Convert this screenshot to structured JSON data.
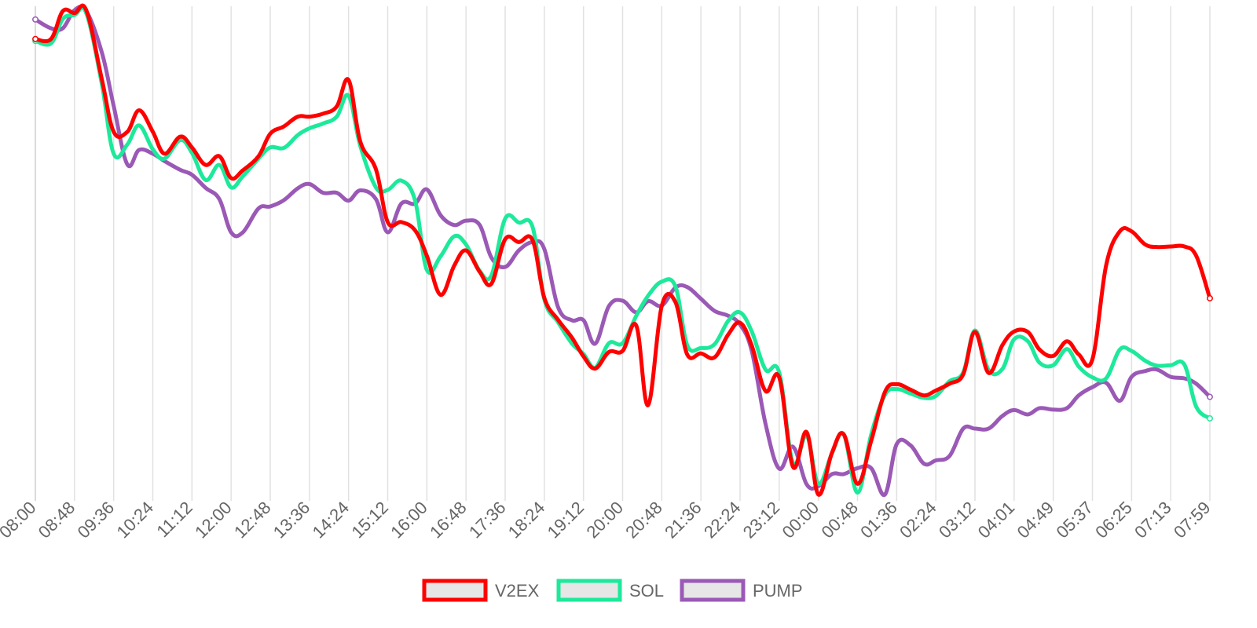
{
  "chart_data": {
    "type": "line",
    "title": "",
    "xlabel": "",
    "ylabel": "",
    "grid": "vertical",
    "legend_position": "bottom",
    "x_ticks": [
      "08:00",
      "08:48",
      "09:36",
      "10:24",
      "11:12",
      "12:00",
      "12:48",
      "13:36",
      "14:24",
      "15:12",
      "16:00",
      "16:48",
      "17:36",
      "18:24",
      "19:12",
      "20:00",
      "20:48",
      "21:36",
      "22:24",
      "23:12",
      "00:00",
      "00:48",
      "01:36",
      "02:24",
      "03:12",
      "04:01",
      "04:49",
      "05:37",
      "06:25",
      "07:13",
      "07:59"
    ],
    "y_axis": {
      "min": 0,
      "max": 100,
      "shown": false
    },
    "x_domain": [
      0,
      30
    ],
    "series": [
      {
        "name": "V2EX",
        "color": "#ff0000",
        "points": [
          [
            0.0,
            93.3
          ],
          [
            0.4,
            93.3
          ],
          [
            0.7,
            99.0
          ],
          [
            1.0,
            98.6
          ],
          [
            1.3,
            99.2
          ],
          [
            1.7,
            85.0
          ],
          [
            2.0,
            74.3
          ],
          [
            2.35,
            74.3
          ],
          [
            2.65,
            78.7
          ],
          [
            3.0,
            74.3
          ],
          [
            3.3,
            69.8
          ],
          [
            3.7,
            73.3
          ],
          [
            4.0,
            71.1
          ],
          [
            4.35,
            67.5
          ],
          [
            4.7,
            69.3
          ],
          [
            5.0,
            64.8
          ],
          [
            5.3,
            66.4
          ],
          [
            5.7,
            69.3
          ],
          [
            6.0,
            73.9
          ],
          [
            6.35,
            75.4
          ],
          [
            6.7,
            77.4
          ],
          [
            7.0,
            77.4
          ],
          [
            7.35,
            78.0
          ],
          [
            7.7,
            79.5
          ],
          [
            8.0,
            84.9
          ],
          [
            8.3,
            72.3
          ],
          [
            8.7,
            66.6
          ],
          [
            9.0,
            55.8
          ],
          [
            9.35,
            55.8
          ],
          [
            9.7,
            54.1
          ],
          [
            10.0,
            48.9
          ],
          [
            10.35,
            40.9
          ],
          [
            10.7,
            46.9
          ],
          [
            11.0,
            50.0
          ],
          [
            11.35,
            45.6
          ],
          [
            11.65,
            43.2
          ],
          [
            12.0,
            52.3
          ],
          [
            12.35,
            51.7
          ],
          [
            12.7,
            52.1
          ],
          [
            13.0,
            40.3
          ],
          [
            13.35,
            35.8
          ],
          [
            13.7,
            32.2
          ],
          [
            14.0,
            28.3
          ],
          [
            14.3,
            25.8
          ],
          [
            14.65,
            29.2
          ],
          [
            15.0,
            29.4
          ],
          [
            15.35,
            34.6
          ],
          [
            15.65,
            18.3
          ],
          [
            16.0,
            38.6
          ],
          [
            16.35,
            39.4
          ],
          [
            16.65,
            28.7
          ],
          [
            17.0,
            28.9
          ],
          [
            17.35,
            28.1
          ],
          [
            17.7,
            32.8
          ],
          [
            18.0,
            35.2
          ],
          [
            18.3,
            30.5
          ],
          [
            18.65,
            21.2
          ],
          [
            19.0,
            24.0
          ],
          [
            19.35,
            5.7
          ],
          [
            19.7,
            12.8
          ],
          [
            20.0,
            0.0
          ],
          [
            20.35,
            8.6
          ],
          [
            20.65,
            12.3
          ],
          [
            21.0,
            2.2
          ],
          [
            21.35,
            11.0
          ],
          [
            21.7,
            21.0
          ],
          [
            22.0,
            22.6
          ],
          [
            22.35,
            21.5
          ],
          [
            22.7,
            20.3
          ],
          [
            23.0,
            21.3
          ],
          [
            23.35,
            22.7
          ],
          [
            23.7,
            24.6
          ],
          [
            24.0,
            33.3
          ],
          [
            24.35,
            24.9
          ],
          [
            24.7,
            30.6
          ],
          [
            25.0,
            33.4
          ],
          [
            25.35,
            33.3
          ],
          [
            25.65,
            29.7
          ],
          [
            26.0,
            28.4
          ],
          [
            26.35,
            31.4
          ],
          [
            26.65,
            28.7
          ],
          [
            27.0,
            27.7
          ],
          [
            27.35,
            46.9
          ],
          [
            27.7,
            53.9
          ],
          [
            28.0,
            53.9
          ],
          [
            28.35,
            51.2
          ],
          [
            28.65,
            50.7
          ],
          [
            29.0,
            50.8
          ],
          [
            29.35,
            50.8
          ],
          [
            29.65,
            48.9
          ],
          [
            30.0,
            40.2
          ]
        ]
      },
      {
        "name": "SOL",
        "color": "#1de99b",
        "points": [
          [
            0.0,
            92.9
          ],
          [
            0.4,
            92.4
          ],
          [
            0.7,
            97.4
          ],
          [
            1.0,
            98.2
          ],
          [
            1.3,
            98.6
          ],
          [
            1.7,
            84.0
          ],
          [
            2.0,
            69.8
          ],
          [
            2.35,
            71.7
          ],
          [
            2.65,
            75.6
          ],
          [
            3.0,
            70.7
          ],
          [
            3.3,
            68.8
          ],
          [
            3.7,
            72.6
          ],
          [
            4.0,
            70.0
          ],
          [
            4.35,
            64.4
          ],
          [
            4.7,
            67.5
          ],
          [
            5.0,
            62.9
          ],
          [
            5.3,
            65.2
          ],
          [
            5.7,
            68.8
          ],
          [
            6.0,
            71.1
          ],
          [
            6.35,
            71.0
          ],
          [
            6.7,
            73.6
          ],
          [
            7.0,
            75.0
          ],
          [
            7.35,
            76.0
          ],
          [
            7.7,
            77.4
          ],
          [
            8.0,
            81.7
          ],
          [
            8.3,
            71.4
          ],
          [
            8.7,
            62.9
          ],
          [
            9.0,
            62.4
          ],
          [
            9.35,
            64.3
          ],
          [
            9.7,
            60.2
          ],
          [
            10.0,
            46.0
          ],
          [
            10.35,
            48.8
          ],
          [
            10.7,
            52.9
          ],
          [
            11.0,
            51.2
          ],
          [
            11.35,
            45.8
          ],
          [
            11.65,
            44.9
          ],
          [
            12.0,
            56.5
          ],
          [
            12.35,
            55.7
          ],
          [
            12.7,
            54.8
          ],
          [
            13.0,
            40.0
          ],
          [
            13.35,
            35.3
          ],
          [
            13.7,
            31.0
          ],
          [
            14.0,
            28.8
          ],
          [
            14.3,
            26.0
          ],
          [
            14.65,
            31.0
          ],
          [
            15.0,
            31.0
          ],
          [
            15.35,
            36.6
          ],
          [
            15.65,
            40.7
          ],
          [
            16.0,
            43.6
          ],
          [
            16.35,
            42.6
          ],
          [
            16.65,
            30.6
          ],
          [
            17.0,
            30.0
          ],
          [
            17.35,
            30.8
          ],
          [
            17.7,
            35.6
          ],
          [
            18.0,
            37.3
          ],
          [
            18.3,
            33.4
          ],
          [
            18.65,
            25.6
          ],
          [
            19.0,
            25.0
          ],
          [
            19.35,
            6.5
          ],
          [
            19.7,
            12.1
          ],
          [
            20.0,
            2.2
          ],
          [
            20.35,
            8.5
          ],
          [
            20.65,
            12.3
          ],
          [
            21.0,
            0.4
          ],
          [
            21.35,
            12.3
          ],
          [
            21.7,
            20.4
          ],
          [
            22.0,
            21.6
          ],
          [
            22.35,
            20.7
          ],
          [
            22.7,
            19.8
          ],
          [
            23.0,
            20.2
          ],
          [
            23.35,
            23.2
          ],
          [
            23.7,
            25.0
          ],
          [
            24.0,
            33.6
          ],
          [
            24.35,
            25.5
          ],
          [
            24.7,
            25.7
          ],
          [
            25.0,
            31.8
          ],
          [
            25.35,
            31.4
          ],
          [
            25.65,
            27.0
          ],
          [
            26.0,
            26.5
          ],
          [
            26.35,
            29.8
          ],
          [
            26.65,
            26.2
          ],
          [
            27.0,
            24.0
          ],
          [
            27.35,
            23.8
          ],
          [
            27.7,
            29.7
          ],
          [
            28.0,
            29.4
          ],
          [
            28.35,
            27.4
          ],
          [
            28.65,
            26.4
          ],
          [
            29.0,
            26.5
          ],
          [
            29.35,
            26.6
          ],
          [
            29.65,
            18.0
          ],
          [
            30.0,
            15.6
          ]
        ]
      },
      {
        "name": "PUMP",
        "color": "#9b59b6",
        "points": [
          [
            0.0,
            97.3
          ],
          [
            0.4,
            95.5
          ],
          [
            0.7,
            95.5
          ],
          [
            1.0,
            99.2
          ],
          [
            1.3,
            99.0
          ],
          [
            1.7,
            90.5
          ],
          [
            2.0,
            79.6
          ],
          [
            2.35,
            67.6
          ],
          [
            2.65,
            70.6
          ],
          [
            3.0,
            69.8
          ],
          [
            3.3,
            68.3
          ],
          [
            3.7,
            66.5
          ],
          [
            4.0,
            65.5
          ],
          [
            4.35,
            62.8
          ],
          [
            4.7,
            60.5
          ],
          [
            5.0,
            53.7
          ],
          [
            5.3,
            53.7
          ],
          [
            5.7,
            58.6
          ],
          [
            6.0,
            59.0
          ],
          [
            6.35,
            60.3
          ],
          [
            6.7,
            62.7
          ],
          [
            7.0,
            63.6
          ],
          [
            7.35,
            61.8
          ],
          [
            7.7,
            61.8
          ],
          [
            8.0,
            60.2
          ],
          [
            8.3,
            62.3
          ],
          [
            8.7,
            60.5
          ],
          [
            9.0,
            53.7
          ],
          [
            9.35,
            59.6
          ],
          [
            9.7,
            59.6
          ],
          [
            10.0,
            62.5
          ],
          [
            10.35,
            57.2
          ],
          [
            10.7,
            55.2
          ],
          [
            11.0,
            56.1
          ],
          [
            11.35,
            55.2
          ],
          [
            11.65,
            48.5
          ],
          [
            12.0,
            46.6
          ],
          [
            12.35,
            50.0
          ],
          [
            12.7,
            51.7
          ],
          [
            13.0,
            50.3
          ],
          [
            13.35,
            38.4
          ],
          [
            13.7,
            35.7
          ],
          [
            14.0,
            35.7
          ],
          [
            14.3,
            30.9
          ],
          [
            14.65,
            38.6
          ],
          [
            15.0,
            39.7
          ],
          [
            15.35,
            37.3
          ],
          [
            15.65,
            39.6
          ],
          [
            16.0,
            38.7
          ],
          [
            16.35,
            42.4
          ],
          [
            16.65,
            42.5
          ],
          [
            17.0,
            40.1
          ],
          [
            17.35,
            37.6
          ],
          [
            17.7,
            36.6
          ],
          [
            18.0,
            34.8
          ],
          [
            18.3,
            29.4
          ],
          [
            18.65,
            14.5
          ],
          [
            19.0,
            5.3
          ],
          [
            19.35,
            9.8
          ],
          [
            19.7,
            2.1
          ],
          [
            20.0,
            1.7
          ],
          [
            20.35,
            4.2
          ],
          [
            20.65,
            4.2
          ],
          [
            21.0,
            5.4
          ],
          [
            21.35,
            5.4
          ],
          [
            21.7,
            0.0
          ],
          [
            22.0,
            10.3
          ],
          [
            22.35,
            10.1
          ],
          [
            22.7,
            6.3
          ],
          [
            23.0,
            7.0
          ],
          [
            23.35,
            7.9
          ],
          [
            23.7,
            13.5
          ],
          [
            24.0,
            13.5
          ],
          [
            24.35,
            13.5
          ],
          [
            24.7,
            16.1
          ],
          [
            25.0,
            17.3
          ],
          [
            25.35,
            16.4
          ],
          [
            25.65,
            17.7
          ],
          [
            26.0,
            17.4
          ],
          [
            26.35,
            17.7
          ],
          [
            26.65,
            20.3
          ],
          [
            27.0,
            22.0
          ],
          [
            27.35,
            22.9
          ],
          [
            27.7,
            19.2
          ],
          [
            28.0,
            24.1
          ],
          [
            28.35,
            25.3
          ],
          [
            28.65,
            25.6
          ],
          [
            29.0,
            24.1
          ],
          [
            29.35,
            23.8
          ],
          [
            29.65,
            22.7
          ],
          [
            30.0,
            20.0
          ]
        ]
      }
    ]
  }
}
